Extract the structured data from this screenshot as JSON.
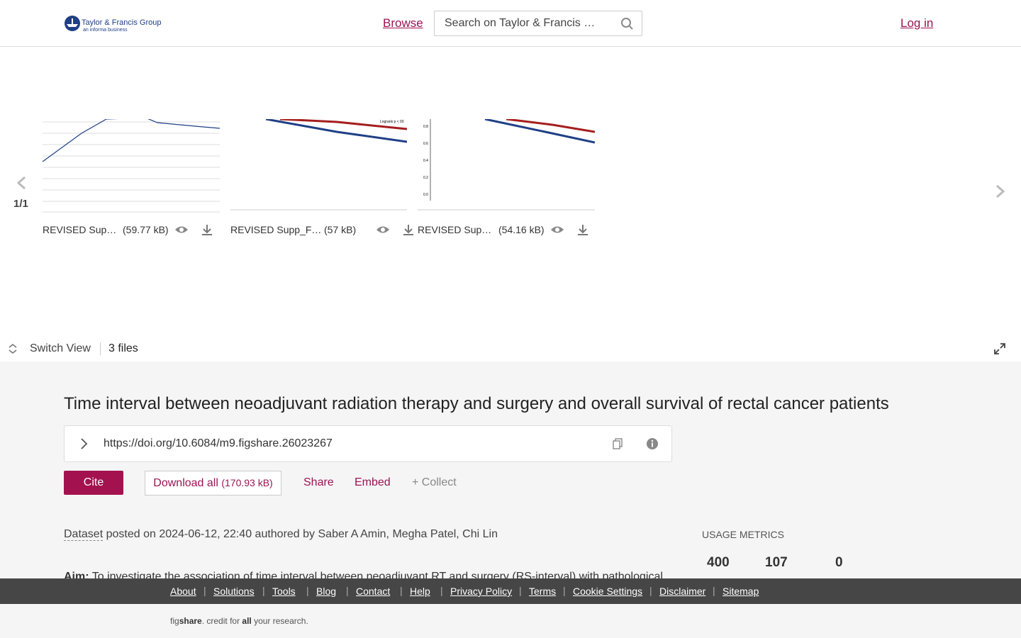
{
  "header": {
    "brand": "Taylor & Francis Group",
    "brand_sub": "an informa business",
    "browse": "Browse",
    "search_placeholder": "Search on Taylor & Francis …",
    "login": "Log in"
  },
  "carousel": {
    "counter": "1/1",
    "files": [
      {
        "name": "REVISED Sup…",
        "size": "(59.77 kB)"
      },
      {
        "name": "REVISED Supp_F…",
        "size": "(57 kB)"
      },
      {
        "name": "REVISED Sup…",
        "size": "(54.16 kB)"
      }
    ],
    "thumb_note": "Logrank p < 00",
    "thumb_ticks": [
      "0.8",
      "0.6",
      "0.4",
      "0.2",
      "0.0"
    ]
  },
  "toolbar": {
    "switch_view": "Switch View",
    "files_count": "3 files"
  },
  "article": {
    "title": "Time interval between neoadjuvant radiation therapy and surgery and overall survival of rectal cancer patients",
    "doi": "https://doi.org/10.6084/m9.figshare.26023267",
    "cite": "Cite",
    "download": "Download all",
    "download_size": "(170.93 kB)",
    "share": "Share",
    "embed": "Embed",
    "collect": "+ Collect",
    "item_type": "Dataset",
    "posted": "posted on 2024-06-12, 22:40 authored by Saber A Amin, Megha Patel, Chi Lin",
    "abstract_label": "Aim:",
    "abstract": "To investigate the association of time interval between neoadjuvant RT and surgery (RS-interval) with pathological"
  },
  "metrics": {
    "heading": "USAGE METRICS",
    "values": [
      400,
      107,
      0
    ]
  },
  "footer": {
    "links": [
      "About",
      "Solutions",
      "Tools",
      "Blog",
      "Contact",
      "Help",
      "Privacy Policy",
      "Terms",
      "Cookie Settings",
      "Disclaimer",
      "Sitemap"
    ],
    "tagline": [
      "fig",
      "share",
      ". credit for ",
      "all",
      " your research."
    ]
  }
}
